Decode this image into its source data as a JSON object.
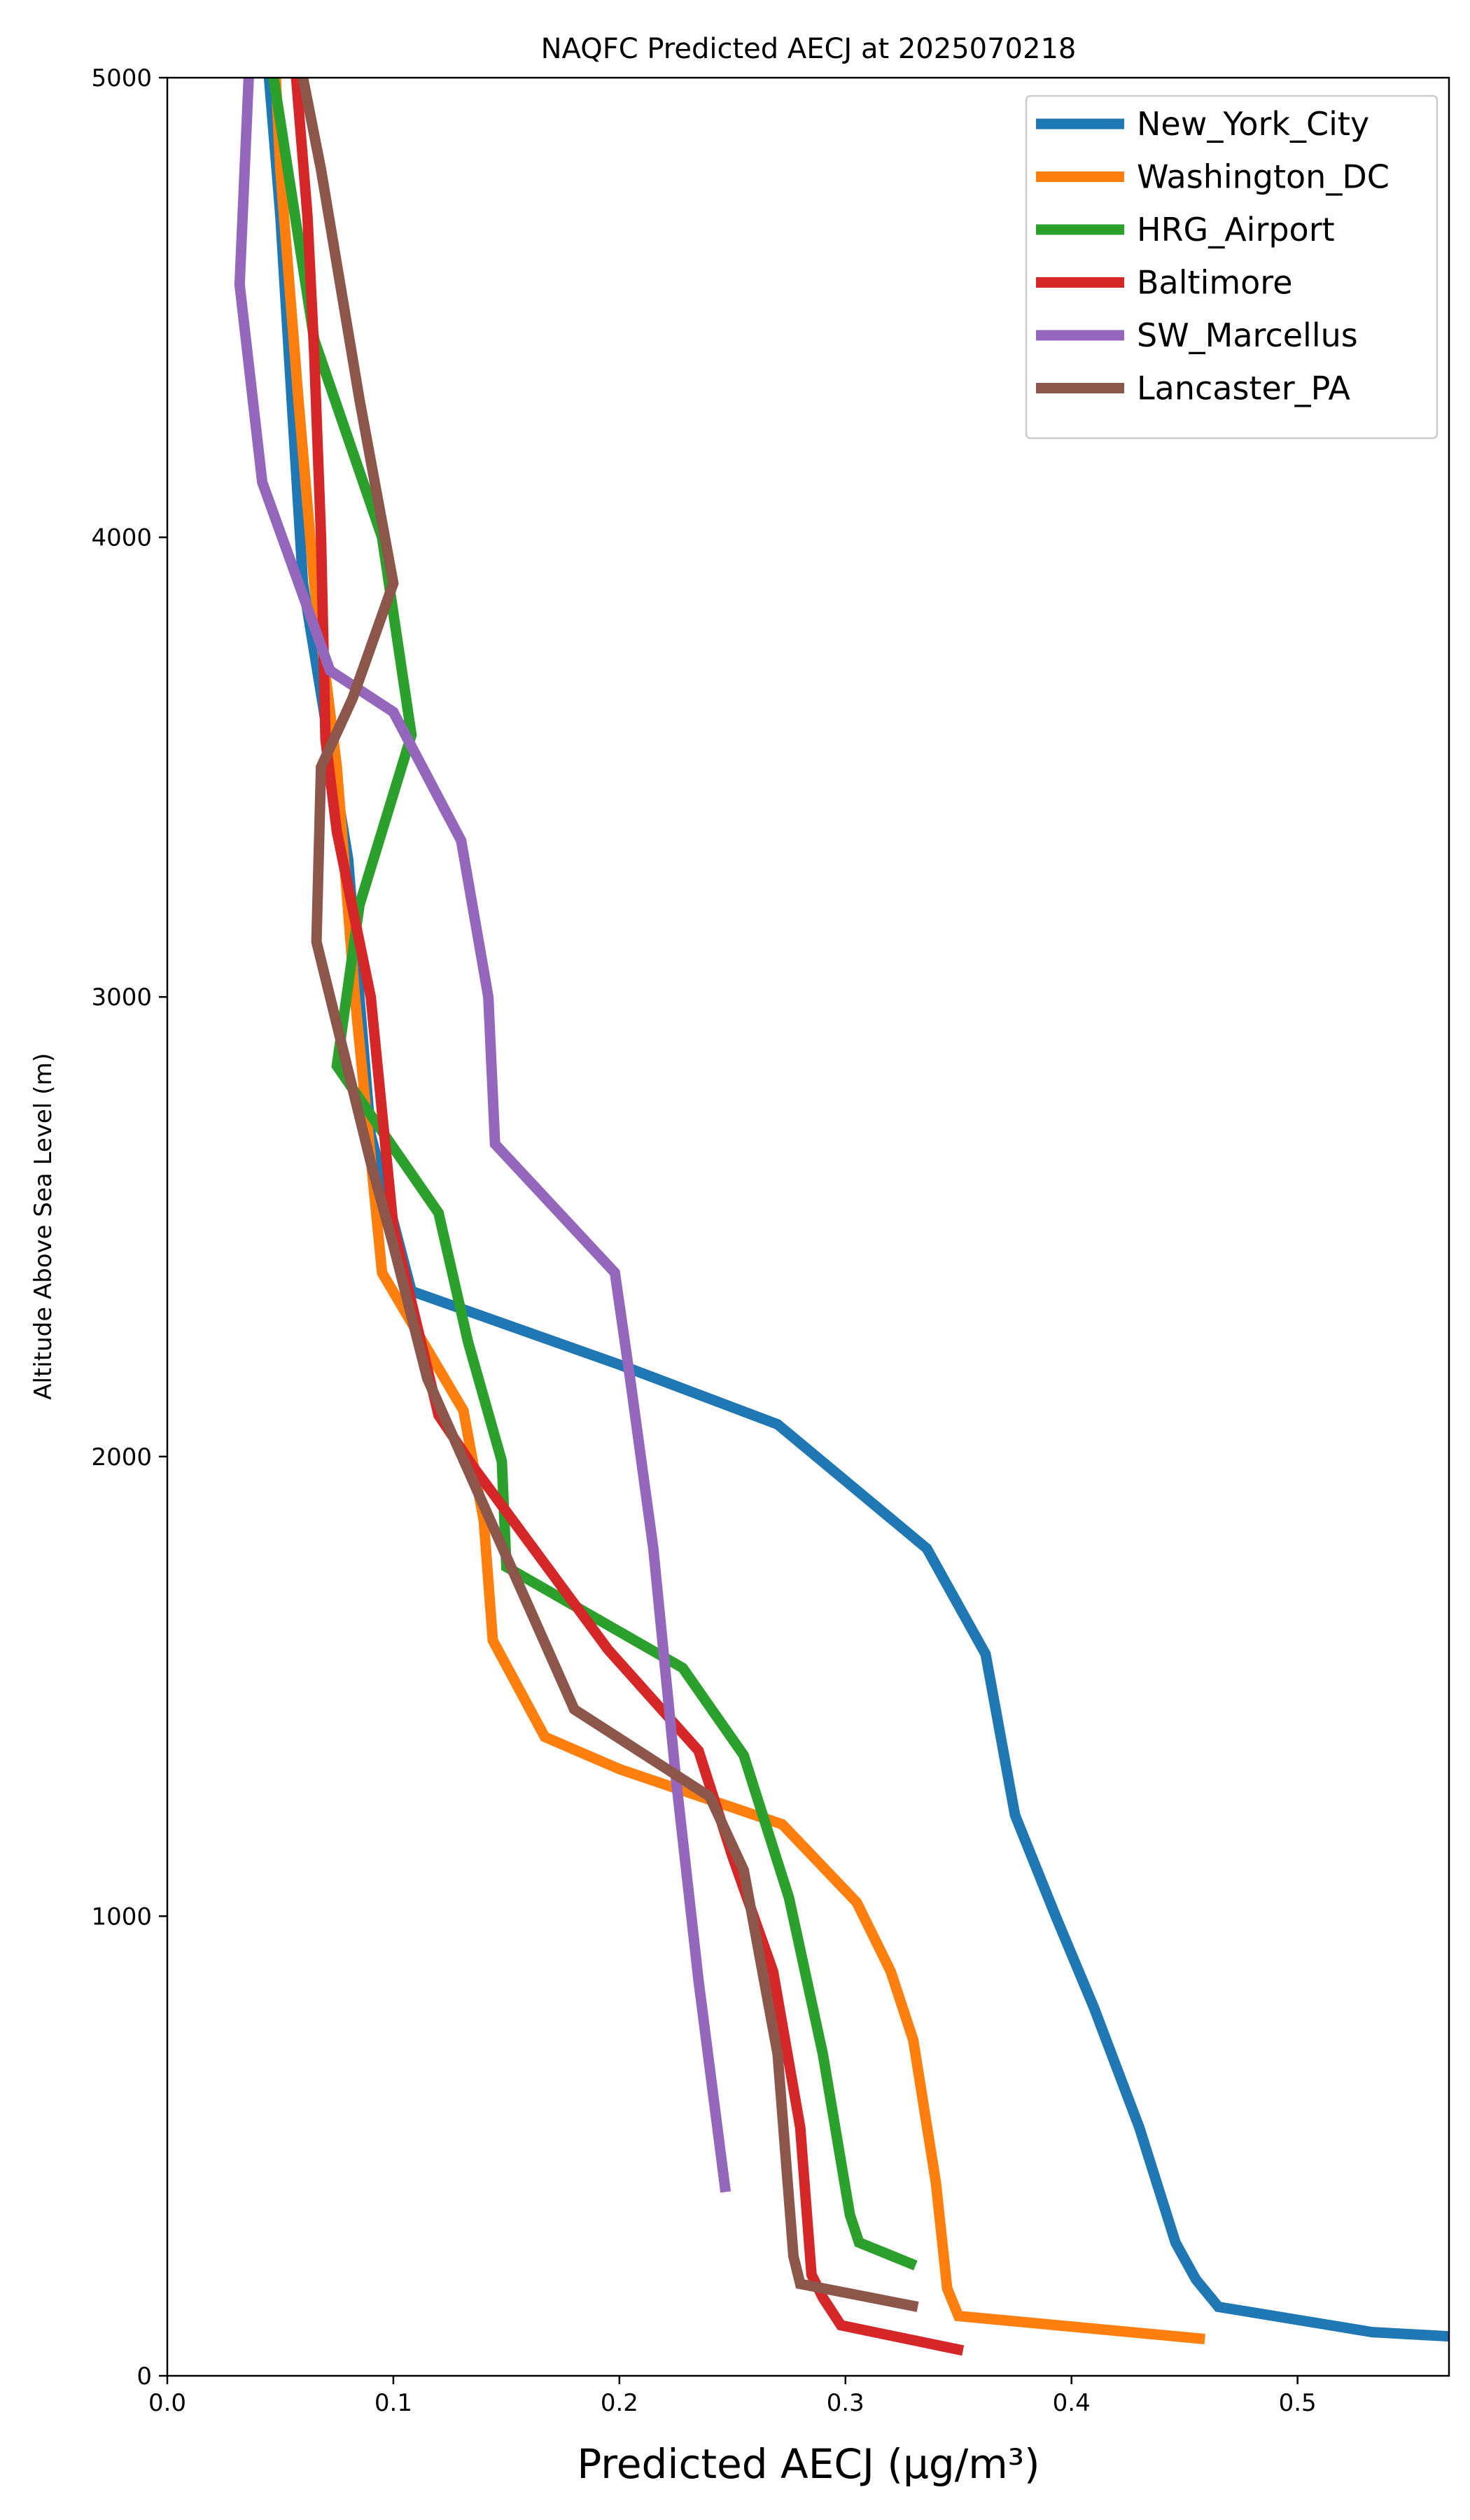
{
  "chart_data": {
    "type": "line",
    "title": "NAQFC Predicted AECJ at 2025070218",
    "xlabel": "Predicted AECJ (μg/m³)",
    "ylabel": "Altitude Above Sea Level (m)",
    "xlim": [
      0.0,
      0.567
    ],
    "ylim": [
      0,
      5000
    ],
    "xticks": [
      "0.0",
      "0.1",
      "0.2",
      "0.3",
      "0.4",
      "0.5"
    ],
    "yticks": [
      "0",
      "1000",
      "2000",
      "3000",
      "4000",
      "5000"
    ],
    "grid": false,
    "legend_position": "top-right",
    "series": [
      {
        "name": "New_York_City",
        "color": "#1f77b4",
        "points": [
          [
            0.57,
            85
          ],
          [
            0.533,
            95
          ],
          [
            0.465,
            150
          ],
          [
            0.455,
            210
          ],
          [
            0.446,
            290
          ],
          [
            0.43,
            540
          ],
          [
            0.41,
            800
          ],
          [
            0.393,
            1000
          ],
          [
            0.375,
            1220
          ],
          [
            0.362,
            1570
          ],
          [
            0.336,
            1800
          ],
          [
            0.27,
            2070
          ],
          [
            0.2,
            2200
          ],
          [
            0.108,
            2360
          ],
          [
            0.09,
            2700
          ],
          [
            0.08,
            3300
          ],
          [
            0.06,
            3900
          ],
          [
            0.055,
            4300
          ],
          [
            0.05,
            4700
          ],
          [
            0.045,
            5000
          ]
        ]
      },
      {
        "name": "Washington_DC",
        "color": "#ff7f0e",
        "points": [
          [
            0.459,
            80
          ],
          [
            0.35,
            130
          ],
          [
            0.345,
            190
          ],
          [
            0.34,
            420
          ],
          [
            0.33,
            730
          ],
          [
            0.32,
            880
          ],
          [
            0.305,
            1030
          ],
          [
            0.272,
            1200
          ],
          [
            0.2,
            1320
          ],
          [
            0.167,
            1390
          ],
          [
            0.144,
            1600
          ],
          [
            0.14,
            1860
          ],
          [
            0.131,
            2100
          ],
          [
            0.095,
            2400
          ],
          [
            0.083,
            3000
          ],
          [
            0.075,
            3500
          ],
          [
            0.065,
            3900
          ],
          [
            0.058,
            4300
          ],
          [
            0.05,
            4800
          ],
          [
            0.048,
            5000
          ]
        ]
      },
      {
        "name": "HRG_Airport",
        "color": "#2ca02c",
        "points": [
          [
            0.331,
            240
          ],
          [
            0.306,
            290
          ],
          [
            0.302,
            350
          ],
          [
            0.29,
            700
          ],
          [
            0.275,
            1040
          ],
          [
            0.255,
            1350
          ],
          [
            0.228,
            1540
          ],
          [
            0.15,
            1760
          ],
          [
            0.148,
            1990
          ],
          [
            0.133,
            2250
          ],
          [
            0.12,
            2530
          ],
          [
            0.075,
            2850
          ],
          [
            0.085,
            3200
          ],
          [
            0.108,
            3570
          ],
          [
            0.095,
            4000
          ],
          [
            0.065,
            4430
          ],
          [
            0.047,
            5000
          ]
        ]
      },
      {
        "name": "Baltimore",
        "color": "#d62728",
        "points": [
          [
            0.352,
            55
          ],
          [
            0.298,
            110
          ],
          [
            0.29,
            170
          ],
          [
            0.285,
            220
          ],
          [
            0.28,
            540
          ],
          [
            0.268,
            880
          ],
          [
            0.25,
            1130
          ],
          [
            0.235,
            1360
          ],
          [
            0.195,
            1580
          ],
          [
            0.135,
            1980
          ],
          [
            0.12,
            2090
          ],
          [
            0.1,
            2500
          ],
          [
            0.09,
            3000
          ],
          [
            0.075,
            3360
          ],
          [
            0.07,
            3560
          ],
          [
            0.068,
            4000
          ],
          [
            0.065,
            4400
          ],
          [
            0.062,
            4700
          ],
          [
            0.057,
            5000
          ]
        ]
      },
      {
        "name": "SW_Marcellus",
        "color": "#9467bd",
        "points": [
          [
            0.247,
            400
          ],
          [
            0.235,
            860
          ],
          [
            0.225,
            1300
          ],
          [
            0.215,
            1800
          ],
          [
            0.205,
            2160
          ],
          [
            0.198,
            2400
          ],
          [
            0.145,
            2680
          ],
          [
            0.142,
            3000
          ],
          [
            0.13,
            3340
          ],
          [
            0.1,
            3620
          ],
          [
            0.072,
            3710
          ],
          [
            0.042,
            4120
          ],
          [
            0.032,
            4550
          ],
          [
            0.036,
            5000
          ]
        ]
      },
      {
        "name": "Lancaster_PA",
        "color": "#8c564b",
        "points": [
          [
            0.332,
            150
          ],
          [
            0.28,
            200
          ],
          [
            0.277,
            260
          ],
          [
            0.27,
            700
          ],
          [
            0.255,
            1100
          ],
          [
            0.24,
            1260
          ],
          [
            0.18,
            1450
          ],
          [
            0.162,
            1650
          ],
          [
            0.115,
            2170
          ],
          [
            0.1,
            2460
          ],
          [
            0.09,
            2640
          ],
          [
            0.066,
            3120
          ],
          [
            0.068,
            3500
          ],
          [
            0.082,
            3650
          ],
          [
            0.1,
            3900
          ],
          [
            0.085,
            4300
          ],
          [
            0.068,
            4800
          ],
          [
            0.06,
            5000
          ]
        ]
      }
    ]
  }
}
